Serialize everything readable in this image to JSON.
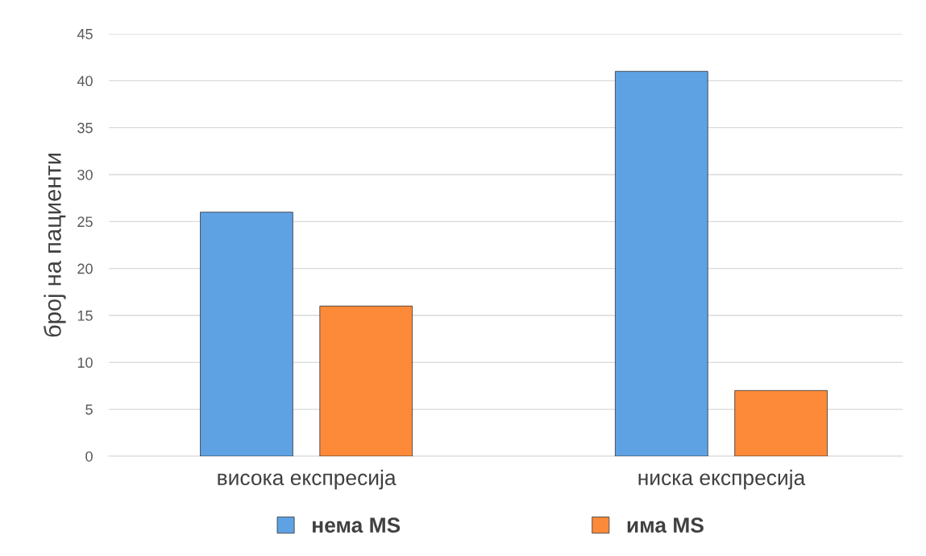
{
  "chart_data": {
    "type": "bar",
    "ylabel": "број на пациенти",
    "categories": [
      "висока експресија",
      "ниска експресија"
    ],
    "series": [
      {
        "name": "нема MS",
        "color": "#5fa2e4",
        "values": [
          26,
          41
        ]
      },
      {
        "name": "има MS",
        "color": "#fd8a39",
        "values": [
          16,
          7
        ]
      }
    ],
    "ylim": [
      0,
      45
    ],
    "yticks": [
      0,
      5,
      10,
      15,
      20,
      25,
      30,
      35,
      40,
      45
    ],
    "grid": "y",
    "legend": "bottom"
  }
}
